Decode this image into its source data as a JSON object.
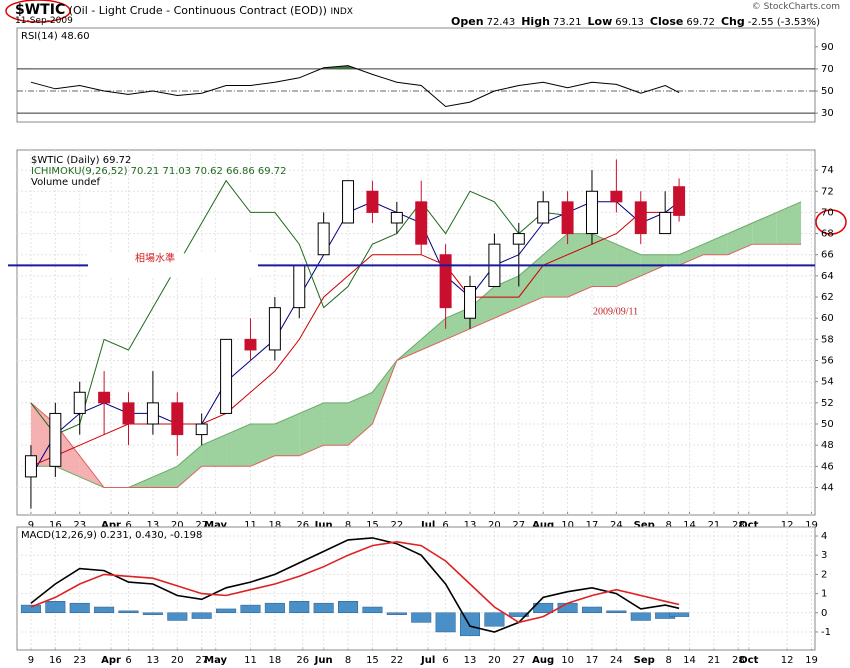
{
  "header": {
    "symbol": "$WTIC",
    "title": "(Oil - Light Crude - Continuous Contract (EOD))",
    "exchange": "INDX",
    "date": "11-Sep-2009",
    "quote": [
      {
        "label": "Open",
        "value": "72.43"
      },
      {
        "label": "High",
        "value": "73.21"
      },
      {
        "label": "Low",
        "value": "69.13"
      },
      {
        "label": "Close",
        "value": "69.72"
      },
      {
        "label": "Chg",
        "value": "-2.55 (-3.53%)"
      }
    ],
    "credit": "© StockCharts.com"
  },
  "chart_data": [
    {
      "type": "line",
      "legend": "RSI(14) 48.60",
      "color": "#000000",
      "overbought_fill": "#3d7a3d",
      "x": [
        0,
        7,
        14,
        21,
        28,
        35,
        42,
        49,
        56,
        63,
        70,
        77,
        84,
        91,
        98,
        105,
        112,
        119,
        126,
        133,
        140,
        147,
        154,
        161,
        168,
        175,
        182,
        186
      ],
      "values": [
        58,
        52,
        55,
        50,
        47,
        50,
        46,
        48,
        55,
        55,
        58,
        62,
        71,
        73,
        65,
        58,
        55,
        36,
        40,
        50,
        55,
        58,
        53,
        58,
        56,
        48,
        55,
        48.6
      ],
      "xlim": [
        -4,
        225
      ],
      "ylim": [
        22,
        107
      ],
      "yticks": [
        30,
        50,
        70,
        90
      ],
      "bands": [
        70,
        30
      ],
      "midline": 50
    },
    {
      "type": "candlestick",
      "legend": [
        "$WTIC (Daily) 69.72",
        "ICHIMOKU(9,26,52) 70.21 71.03 70.62 66.86 69.72",
        "Volume undef"
      ],
      "x": [
        0,
        7,
        14,
        21,
        28,
        35,
        42,
        49,
        56,
        63,
        70,
        77,
        84,
        91,
        98,
        105,
        112,
        119,
        126,
        133,
        140,
        147,
        154,
        161,
        168,
        175,
        182,
        186,
        193,
        200,
        207,
        214,
        221
      ],
      "open": [
        45,
        46,
        51,
        53,
        52,
        50,
        52,
        49,
        51,
        58,
        57,
        61,
        66,
        69,
        72,
        69,
        71,
        66,
        60,
        63,
        67,
        69,
        71,
        68,
        72,
        71,
        68,
        72.43,
        null,
        null,
        null,
        null,
        null
      ],
      "high": [
        48,
        52,
        54,
        55,
        53,
        55,
        53,
        51,
        58,
        60,
        62,
        65,
        70,
        73,
        73,
        71,
        73,
        67,
        64,
        68,
        69,
        72,
        72,
        74,
        75,
        72,
        72,
        73.21,
        null,
        null,
        null,
        null,
        null
      ],
      "low": [
        42,
        45,
        49,
        49,
        48,
        49,
        47,
        48,
        51,
        56,
        56,
        60,
        66,
        69,
        69,
        68,
        66,
        59,
        59,
        63,
        63,
        69,
        67,
        67,
        70,
        67,
        68,
        69.13,
        null,
        null,
        null,
        null,
        null
      ],
      "close": [
        47,
        51,
        53,
        52,
        50,
        52,
        49,
        50,
        58,
        57,
        61,
        65,
        69,
        73,
        70,
        70,
        67,
        61,
        63,
        67,
        68,
        71,
        68,
        72,
        71,
        68,
        70,
        69.72,
        null,
        null,
        null,
        null,
        null
      ],
      "up_color": "#000000",
      "down_color": "#c8102e",
      "lines": [
        {
          "color": "#000080",
          "values": [
            45,
            49,
            51,
            52,
            51,
            51,
            50,
            50,
            54,
            56,
            58,
            62,
            66,
            70,
            71,
            70,
            69,
            64,
            62,
            65,
            66,
            69,
            70,
            71,
            71,
            69,
            70,
            71,
            null,
            null,
            null,
            null,
            null
          ]
        },
        {
          "color": "#cc0000",
          "values": [
            46,
            47,
            48,
            49,
            50,
            50,
            50,
            50,
            51,
            53,
            55,
            58,
            62,
            64,
            66,
            66,
            66,
            65,
            62,
            62,
            62,
            65,
            66,
            67,
            68,
            70,
            70,
            70,
            null,
            null,
            null,
            null,
            null
          ]
        },
        {
          "color": "#1e6b1e",
          "values": [
            52,
            49,
            50,
            58,
            57,
            61,
            65,
            69,
            73,
            70,
            70,
            67,
            61,
            63,
            67,
            68,
            71,
            68,
            72,
            71,
            68,
            70,
            69.72,
            null,
            null,
            null,
            null,
            null,
            null,
            null,
            null,
            null,
            null
          ]
        }
      ],
      "cloud": {
        "span_a": [
          46,
          46,
          45,
          44,
          44,
          45,
          46,
          48,
          49,
          50,
          50,
          51,
          52,
          52,
          53,
          56,
          58,
          60,
          61,
          63,
          64,
          66,
          68,
          68,
          67,
          66,
          66,
          66,
          67,
          68,
          69,
          70,
          71
        ],
        "span_b": [
          52,
          50,
          47,
          44,
          44,
          44,
          44,
          46,
          46,
          46,
          47,
          47,
          48,
          48,
          50,
          56,
          57,
          58,
          59,
          60,
          61,
          62,
          62,
          63,
          63,
          64,
          65,
          65,
          66,
          66,
          67,
          67,
          67
        ],
        "up_color": "#8cc98c",
        "down_color": "#f3a3a3",
        "a_color": "#6aaa6a",
        "b_color": "#e06060"
      },
      "reference_line": {
        "value": 65,
        "label": "相場水準",
        "color": "#1a1aa0"
      },
      "annotation": "2009/09/11",
      "xlim": [
        -4,
        225
      ],
      "ylim": [
        41.4,
        75.9
      ],
      "yticks": [
        44,
        46,
        48,
        50,
        52,
        54,
        56,
        58,
        60,
        62,
        64,
        66,
        68,
        70,
        72,
        74
      ],
      "grid": true,
      "xticks": [
        {
          "value": 0,
          "label": "9"
        },
        {
          "value": 7,
          "label": "16"
        },
        {
          "value": 14,
          "label": "23"
        },
        {
          "value": 23,
          "label": "Apr"
        },
        {
          "value": 28,
          "label": "6"
        },
        {
          "value": 35,
          "label": "13"
        },
        {
          "value": 42,
          "label": "20"
        },
        {
          "value": 49,
          "label": "27"
        },
        {
          "value": 53,
          "label": "May"
        },
        {
          "value": 63,
          "label": "11"
        },
        {
          "value": 70,
          "label": "18"
        },
        {
          "value": 78,
          "label": "26"
        },
        {
          "value": 84,
          "label": "Jun"
        },
        {
          "value": 91,
          "label": "8"
        },
        {
          "value": 98,
          "label": "15"
        },
        {
          "value": 105,
          "label": "22"
        },
        {
          "value": 114,
          "label": "Jul"
        },
        {
          "value": 119,
          "label": "6"
        },
        {
          "value": 126,
          "label": "13"
        },
        {
          "value": 133,
          "label": "20"
        },
        {
          "value": 140,
          "label": "27"
        },
        {
          "value": 147,
          "label": "Aug"
        },
        {
          "value": 154,
          "label": "10"
        },
        {
          "value": 161,
          "label": "17"
        },
        {
          "value": 168,
          "label": "24"
        },
        {
          "value": 176,
          "label": "Sep"
        },
        {
          "value": 183,
          "label": "8"
        },
        {
          "value": 189,
          "label": "14"
        },
        {
          "value": 196,
          "label": "21"
        },
        {
          "value": 203,
          "label": "28"
        },
        {
          "value": 206,
          "label": "Oct"
        },
        {
          "value": 217,
          "label": "12"
        },
        {
          "value": 224,
          "label": "19"
        }
      ]
    },
    {
      "type": "line",
      "legend": "MACD(12,26,9) 0.231, 0.430, -0.198",
      "x": [
        0,
        7,
        14,
        21,
        28,
        35,
        42,
        49,
        56,
        63,
        70,
        77,
        84,
        91,
        98,
        105,
        112,
        119,
        126,
        133,
        140,
        147,
        154,
        161,
        168,
        175,
        182,
        186
      ],
      "series": [
        {
          "color": "#4a90c8",
          "style": "bar",
          "values": [
            0.4,
            0.6,
            0.5,
            0.3,
            0.1,
            -0.1,
            -0.4,
            -0.3,
            0.2,
            0.4,
            0.5,
            0.6,
            0.5,
            0.6,
            0.3,
            -0.1,
            -0.5,
            -1.0,
            -1.2,
            -0.7,
            -0.2,
            0.5,
            0.5,
            0.3,
            0.1,
            -0.4,
            -0.3,
            -0.198
          ]
        },
        {
          "color": "#000000",
          "values": [
            0.5,
            1.5,
            2.3,
            2.2,
            1.6,
            1.5,
            0.9,
            0.7,
            1.3,
            1.6,
            2.0,
            2.6,
            3.2,
            3.8,
            3.9,
            3.6,
            3.0,
            1.5,
            -0.7,
            -1.0,
            -0.5,
            0.8,
            1.1,
            1.3,
            1.0,
            0.2,
            0.4,
            0.231
          ]
        },
        {
          "color": "#dd2222",
          "values": [
            0.3,
            0.8,
            1.5,
            2.0,
            1.9,
            1.8,
            1.4,
            1.0,
            0.9,
            1.2,
            1.5,
            1.9,
            2.4,
            3.0,
            3.5,
            3.7,
            3.5,
            2.7,
            1.5,
            0.3,
            -0.5,
            -0.2,
            0.5,
            0.9,
            1.2,
            0.9,
            0.6,
            0.43
          ]
        }
      ],
      "xlim": [
        -4,
        225
      ],
      "ylim": [
        -1.94,
        4.47
      ],
      "yticks": [
        -1,
        0,
        1,
        2,
        3,
        4
      ],
      "grid": true,
      "xticks": [
        {
          "value": 0,
          "label": "9"
        },
        {
          "value": 7,
          "label": "16"
        },
        {
          "value": 14,
          "label": "23"
        },
        {
          "value": 23,
          "label": "Apr"
        },
        {
          "value": 28,
          "label": "6"
        },
        {
          "value": 35,
          "label": "13"
        },
        {
          "value": 42,
          "label": "20"
        },
        {
          "value": 49,
          "label": "27"
        },
        {
          "value": 53,
          "label": "May"
        },
        {
          "value": 63,
          "label": "11"
        },
        {
          "value": 70,
          "label": "18"
        },
        {
          "value": 78,
          "label": "26"
        },
        {
          "value": 84,
          "label": "Jun"
        },
        {
          "value": 91,
          "label": "8"
        },
        {
          "value": 98,
          "label": "15"
        },
        {
          "value": 105,
          "label": "22"
        },
        {
          "value": 114,
          "label": "Jul"
        },
        {
          "value": 119,
          "label": "6"
        },
        {
          "value": 126,
          "label": "13"
        },
        {
          "value": 133,
          "label": "20"
        },
        {
          "value": 140,
          "label": "27"
        },
        {
          "value": 147,
          "label": "Aug"
        },
        {
          "value": 154,
          "label": "10"
        },
        {
          "value": 161,
          "label": "17"
        },
        {
          "value": 168,
          "label": "24"
        },
        {
          "value": 176,
          "label": "Sep"
        },
        {
          "value": 183,
          "label": "8"
        },
        {
          "value": 189,
          "label": "14"
        },
        {
          "value": 196,
          "label": "21"
        },
        {
          "value": 203,
          "label": "28"
        },
        {
          "value": 206,
          "label": "Oct"
        },
        {
          "value": 217,
          "label": "12"
        },
        {
          "value": 224,
          "label": "19"
        }
      ]
    }
  ]
}
